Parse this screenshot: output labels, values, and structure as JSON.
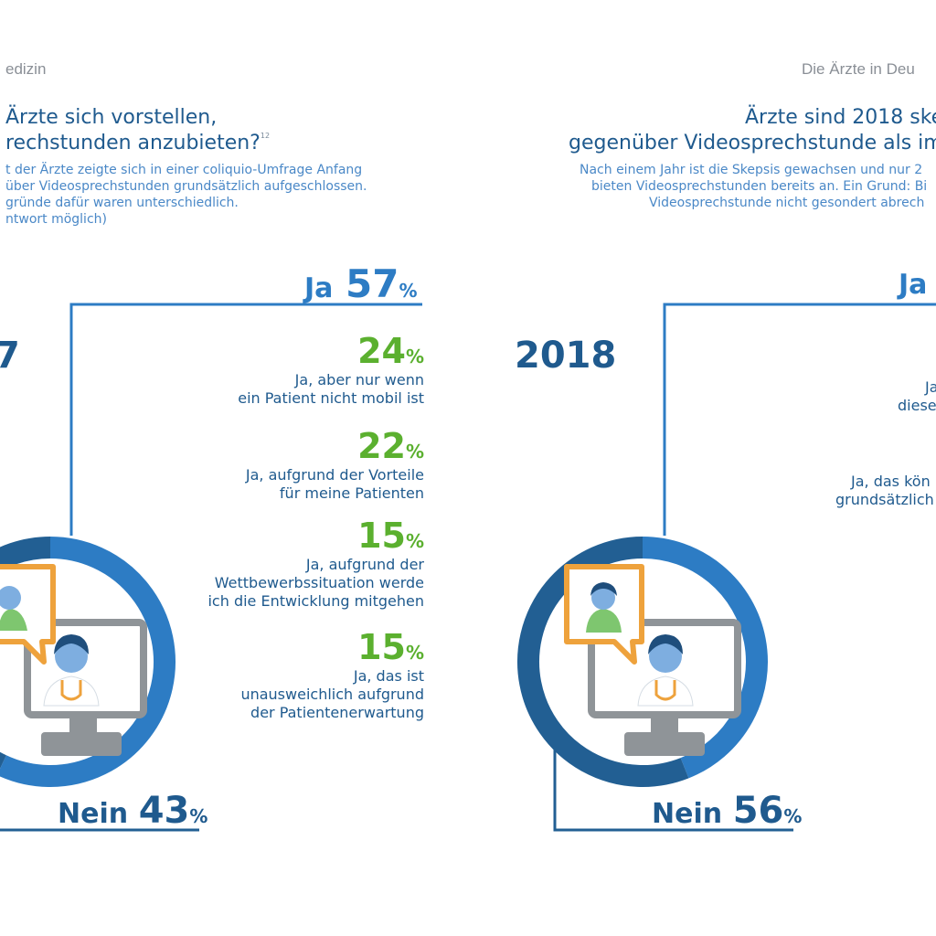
{
  "left_panel": {
    "header": "edizin",
    "title_line1": "Ärzte sich vorstellen,",
    "title_line2": "rechstunden anzubieten?",
    "title_footnote": "12",
    "subtitle_lines": [
      "t der Ärzte zeigte sich in einer coliquio-Umfrage Anfang",
      "über Videosprechstunden grundsätzlich aufgeschlossen.",
      "gründe dafür waren unterschiedlich.",
      "ntwort möglich)"
    ],
    "year": "7",
    "ja_label": "Ja",
    "ja_value": "57",
    "nein_label": "Nein",
    "nein_value": "43",
    "percent_sign": "%",
    "reasons": [
      {
        "value": "24",
        "lines": [
          "Ja, aber nur wenn",
          "ein Patient nicht mobil ist"
        ]
      },
      {
        "value": "22",
        "lines": [
          "Ja, aufgrund der Vorteile",
          "für meine Patienten"
        ]
      },
      {
        "value": "15",
        "lines": [
          "Ja, aufgrund der",
          "Wettbewerbssituation werde",
          "ich die Entwicklung mitgehen"
        ]
      },
      {
        "value": "15",
        "lines": [
          "Ja, das ist",
          "unausweichlich aufgrund",
          "der Patientenerwartung"
        ]
      }
    ]
  },
  "right_panel": {
    "header": "Die Ärzte in Deu",
    "title_line1": "Ärzte sind 2018 skep",
    "title_line2": "gegenüber Videosprechstunde als im",
    "subtitle_lines": [
      "Nach einem Jahr ist die Skepsis gewachsen und nur 2",
      "bieten Videosprechstunden bereits an. Ein Grund: Bi",
      "Videosprechstunde nicht gesondert abrech"
    ],
    "year": "2018",
    "ja_label": "Ja",
    "nein_label": "Nein",
    "nein_value": "56",
    "percent_sign": "%",
    "partial_reasons": [
      {
        "lines": [
          "Ja",
          "diese"
        ]
      },
      {
        "lines": [
          "Ja, das kön",
          "grundsätzlich"
        ]
      }
    ]
  },
  "colors": {
    "ja_blue": "#2d7cc4",
    "nein_navy": "#225f93",
    "green": "#5bb02f",
    "orange": "#eea23c",
    "monitor_gray": "#8f9498"
  },
  "chart_data": [
    {
      "type": "pie",
      "variant": "donut",
      "year_label": "7",
      "categories": [
        "Ja",
        "Nein"
      ],
      "values": [
        57,
        43
      ],
      "unit": "%",
      "breakdown_of_ja": {
        "categories": [
          "Ja, aber nur wenn ein Patient nicht mobil ist",
          "Ja, aufgrund der Vorteile für meine Patienten",
          "Ja, aufgrund der Wettbewerbssituation werde ich die Entwicklung mitgehen",
          "Ja, das ist unausweichlich aufgrund der Patientenerwartung"
        ],
        "values": [
          24,
          22,
          15,
          15
        ]
      }
    },
    {
      "type": "pie",
      "variant": "donut",
      "year_label": "2018",
      "categories": [
        "Ja",
        "Nein"
      ],
      "values": [
        44,
        56
      ],
      "unit": "%"
    }
  ]
}
